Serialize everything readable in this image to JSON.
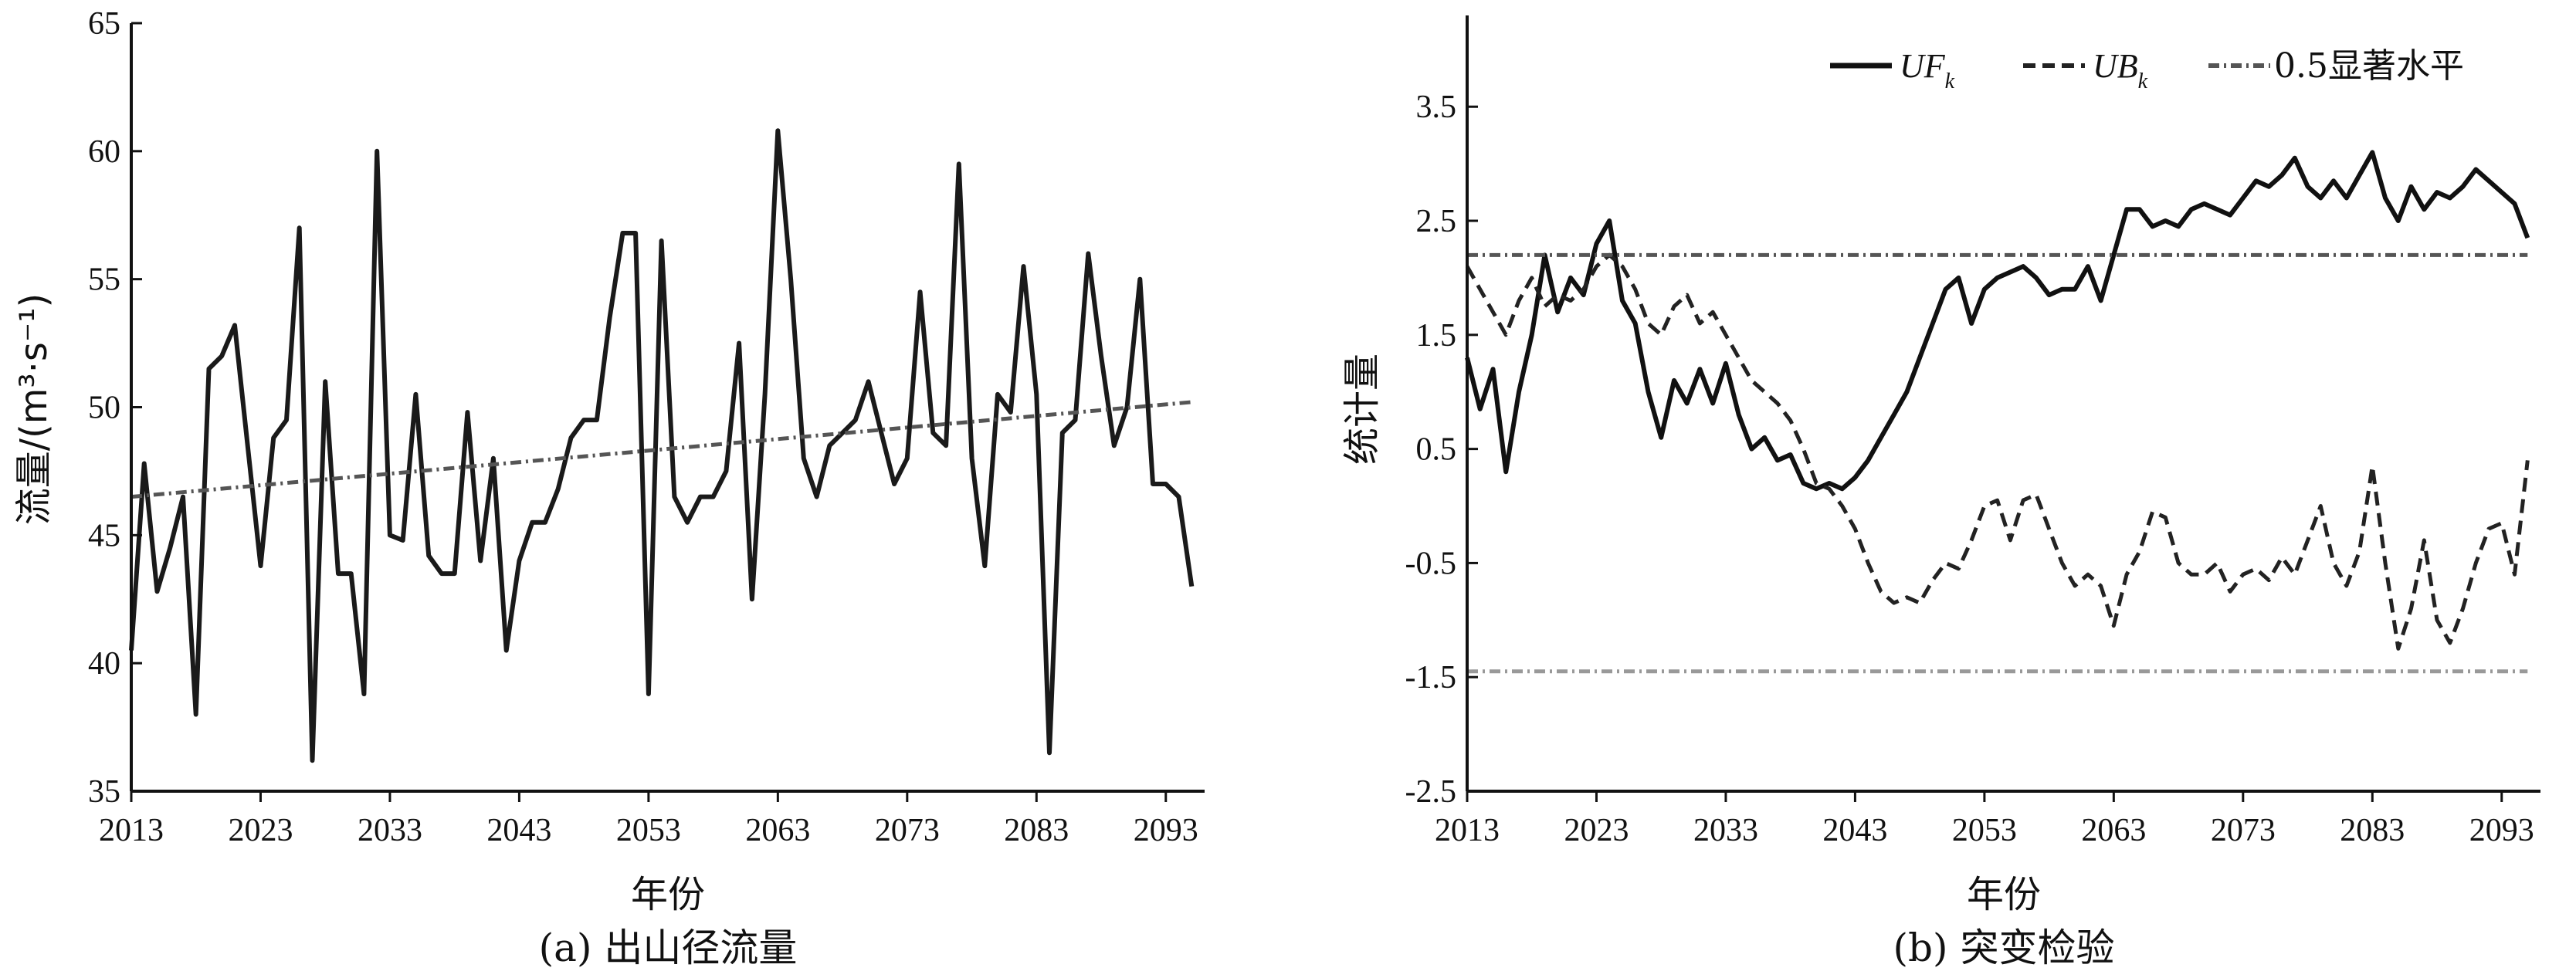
{
  "chart_data": [
    {
      "type": "line",
      "caption": "(a) 出山径流量",
      "xlabel": "年份",
      "ylabel": "流量/(m³·s⁻¹)",
      "xlim": [
        2013,
        2096
      ],
      "ylim": [
        35,
        65
      ],
      "xticks": [
        "2013",
        "2023",
        "2033",
        "2043",
        "2053",
        "2063",
        "2073",
        "2083",
        "2093"
      ],
      "yticks": [
        "35",
        "40",
        "45",
        "50",
        "55",
        "60",
        "65"
      ],
      "grid": false,
      "series": [
        {
          "style": "solid",
          "color": "#1a1a1a",
          "x": [
            2013,
            2014,
            2015,
            2016,
            2017,
            2018,
            2019,
            2020,
            2021,
            2022,
            2023,
            2024,
            2025,
            2026,
            2027,
            2028,
            2029,
            2030,
            2031,
            2032,
            2033,
            2034,
            2035,
            2036,
            2037,
            2038,
            2039,
            2040,
            2041,
            2042,
            2043,
            2044,
            2045,
            2046,
            2047,
            2048,
            2049,
            2050,
            2051,
            2052,
            2053,
            2054,
            2055,
            2056,
            2057,
            2058,
            2059,
            2060,
            2061,
            2062,
            2063,
            2064,
            2065,
            2066,
            2067,
            2068,
            2069,
            2070,
            2071,
            2072,
            2073,
            2074,
            2075,
            2076,
            2077,
            2078,
            2079,
            2080,
            2081,
            2082,
            2083,
            2084,
            2085,
            2086,
            2087,
            2088,
            2089,
            2090,
            2091,
            2092,
            2093,
            2094,
            2095
          ],
          "values": [
            40.5,
            47.8,
            42.8,
            44.5,
            46.5,
            38.0,
            51.5,
            52.0,
            53.2,
            48.5,
            43.8,
            48.8,
            49.5,
            57.0,
            36.2,
            51.0,
            43.5,
            43.5,
            38.8,
            60.0,
            45.0,
            44.8,
            50.5,
            44.2,
            43.5,
            43.5,
            49.8,
            44.0,
            48.0,
            40.5,
            44.0,
            45.5,
            45.5,
            46.8,
            48.8,
            49.5,
            49.5,
            53.5,
            56.8,
            56.8,
            38.8,
            56.5,
            46.5,
            45.5,
            46.5,
            46.5,
            47.5,
            52.5,
            42.5,
            50.5,
            60.8,
            55.0,
            48.0,
            46.5,
            48.5,
            49.0,
            49.5,
            51.0,
            49.0,
            47.0,
            48.0,
            54.5,
            49.0,
            48.5,
            59.5,
            48.0,
            43.8,
            50.5,
            49.8,
            55.5,
            50.5,
            36.5,
            49.0,
            49.5,
            56.0,
            52.0,
            48.5,
            50.0,
            55.0,
            47.0,
            47.0,
            46.5,
            43.0
          ]
        },
        {
          "style": "dash-dot",
          "color": "#555555",
          "x": [
            2013,
            2095
          ],
          "values": [
            46.5,
            50.2
          ]
        }
      ]
    },
    {
      "type": "line",
      "caption": "(b) 突变检验",
      "xlabel": "年份",
      "ylabel": "统计量",
      "xlim": [
        2013,
        2096
      ],
      "ylim": [
        -2.5,
        4.3
      ],
      "xticks": [
        "2013",
        "2023",
        "2033",
        "2043",
        "2053",
        "2063",
        "2073",
        "2083",
        "2093"
      ],
      "yticks": [
        "-2.5",
        "-1.5",
        "-0.5",
        "0.5",
        "1.5",
        "2.5",
        "3.5"
      ],
      "legend_position": "top-right",
      "grid": false,
      "legend": [
        {
          "name": "UF",
          "sub": "k",
          "style": "solid"
        },
        {
          "name": "UB",
          "sub": "k",
          "style": "dashed"
        },
        {
          "name": "0.5显著水平",
          "style": "dash-dot"
        }
      ],
      "series": [
        {
          "name": "UF_k",
          "style": "solid",
          "color": "#111111",
          "x": [
            2013,
            2014,
            2015,
            2016,
            2017,
            2018,
            2019,
            2020,
            2021,
            2022,
            2023,
            2024,
            2025,
            2026,
            2027,
            2028,
            2029,
            2030,
            2031,
            2032,
            2033,
            2034,
            2035,
            2036,
            2037,
            2038,
            2039,
            2040,
            2041,
            2042,
            2043,
            2044,
            2045,
            2046,
            2047,
            2048,
            2049,
            2050,
            2051,
            2052,
            2053,
            2054,
            2055,
            2056,
            2057,
            2058,
            2059,
            2060,
            2061,
            2062,
            2063,
            2064,
            2065,
            2066,
            2067,
            2068,
            2069,
            2070,
            2071,
            2072,
            2073,
            2074,
            2075,
            2076,
            2077,
            2078,
            2079,
            2080,
            2081,
            2082,
            2083,
            2084,
            2085,
            2086,
            2087,
            2088,
            2089,
            2090,
            2091,
            2092,
            2093,
            2094,
            2095
          ],
          "values": [
            1.3,
            0.85,
            1.2,
            0.3,
            1.0,
            1.5,
            2.2,
            1.7,
            2.0,
            1.85,
            2.3,
            2.5,
            1.8,
            1.6,
            1.0,
            0.6,
            1.1,
            0.9,
            1.2,
            0.9,
            1.25,
            0.8,
            0.5,
            0.6,
            0.4,
            0.45,
            0.2,
            0.15,
            0.2,
            0.15,
            0.25,
            0.4,
            0.6,
            0.8,
            1.0,
            1.3,
            1.6,
            1.9,
            2.0,
            1.6,
            1.9,
            2.0,
            2.05,
            2.1,
            2.0,
            1.85,
            1.9,
            1.9,
            2.1,
            1.8,
            2.2,
            2.6,
            2.6,
            2.45,
            2.5,
            2.45,
            2.6,
            2.65,
            2.6,
            2.55,
            2.7,
            2.85,
            2.8,
            2.9,
            3.05,
            2.8,
            2.7,
            2.85,
            2.7,
            2.9,
            3.1,
            2.7,
            2.5,
            2.8,
            2.6,
            2.75,
            2.7,
            2.8,
            2.95,
            2.85,
            2.75,
            2.65,
            2.35
          ]
        },
        {
          "name": "UB_k",
          "style": "dashed",
          "color": "#222222",
          "x": [
            2013,
            2014,
            2015,
            2016,
            2017,
            2018,
            2019,
            2020,
            2021,
            2022,
            2023,
            2024,
            2025,
            2026,
            2027,
            2028,
            2029,
            2030,
            2031,
            2032,
            2033,
            2034,
            2035,
            2036,
            2037,
            2038,
            2039,
            2040,
            2041,
            2042,
            2043,
            2044,
            2045,
            2046,
            2047,
            2048,
            2049,
            2050,
            2051,
            2052,
            2053,
            2054,
            2055,
            2056,
            2057,
            2058,
            2059,
            2060,
            2061,
            2062,
            2063,
            2064,
            2065,
            2066,
            2067,
            2068,
            2069,
            2070,
            2071,
            2072,
            2073,
            2074,
            2075,
            2076,
            2077,
            2078,
            2079,
            2080,
            2081,
            2082,
            2083,
            2084,
            2085,
            2086,
            2087,
            2088,
            2089,
            2090,
            2091,
            2092,
            2093,
            2094,
            2095
          ],
          "values": [
            2.1,
            1.9,
            1.7,
            1.5,
            1.8,
            2.0,
            1.75,
            1.85,
            1.8,
            1.9,
            2.1,
            2.2,
            2.1,
            1.9,
            1.6,
            1.5,
            1.75,
            1.85,
            1.6,
            1.7,
            1.5,
            1.3,
            1.1,
            1.0,
            0.9,
            0.75,
            0.5,
            0.2,
            0.15,
            0.0,
            -0.2,
            -0.5,
            -0.75,
            -0.85,
            -0.8,
            -0.85,
            -0.65,
            -0.5,
            -0.55,
            -0.3,
            0.0,
            0.05,
            -0.3,
            0.05,
            0.1,
            -0.2,
            -0.5,
            -0.7,
            -0.6,
            -0.7,
            -1.05,
            -0.6,
            -0.4,
            -0.05,
            -0.1,
            -0.5,
            -0.6,
            -0.6,
            -0.5,
            -0.75,
            -0.6,
            -0.55,
            -0.65,
            -0.45,
            -0.6,
            -0.3,
            0.0,
            -0.5,
            -0.7,
            -0.4,
            0.35,
            -0.5,
            -1.25,
            -0.9,
            -0.3,
            -1.0,
            -1.2,
            -0.9,
            -0.5,
            -0.2,
            -0.15,
            -0.6,
            0.4
          ]
        },
        {
          "name": "0.5显著水平",
          "style": "dash-dot",
          "color": "#555555",
          "x": [
            2013,
            2095
          ],
          "values": [
            2.2,
            2.2
          ]
        },
        {
          "name": "0.5显著水平",
          "style": "dash-dot",
          "color": "#999999",
          "x": [
            2013,
            2095
          ],
          "values": [
            -1.45,
            -1.45
          ]
        }
      ]
    }
  ]
}
